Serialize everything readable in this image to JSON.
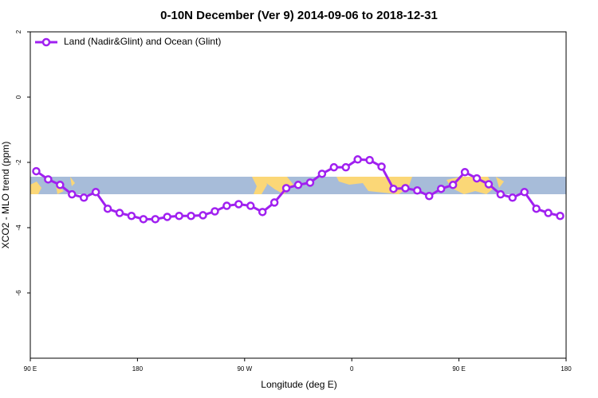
{
  "chart_data": {
    "type": "line",
    "title": "0-10N December (Ver 9)   2014-09-06 to 2018-12-31",
    "x_label": "Longitude (deg E)",
    "y_label": "XCO2 - MLO trend (ppm)",
    "xlim": [
      90,
      540
    ],
    "xticks": [
      {
        "value": 90,
        "label": "90 E"
      },
      180,
      {
        "value": 270,
        "label": "90 W"
      },
      {
        "value": 360,
        "label": "0"
      },
      {
        "value": 450,
        "label": "90 E"
      },
      {
        "value": 540,
        "label": "180"
      }
    ],
    "ylim": [
      -8,
      2
    ],
    "yticks": [
      -6,
      -4,
      -2,
      0,
      2
    ],
    "legend": "top-left",
    "x": [
      95,
      105,
      115,
      125,
      135,
      145,
      155,
      165,
      175,
      185,
      195,
      205,
      215,
      225,
      235,
      245,
      255,
      265,
      275,
      285,
      295,
      305,
      315,
      325,
      335,
      345,
      355,
      365,
      375,
      385,
      395,
      405,
      415,
      425,
      435,
      445,
      455,
      465,
      475,
      485,
      495,
      505,
      515,
      525,
      535
    ],
    "series": [
      {
        "name": "Land (Nadir&Glint) and Ocean (Glint)",
        "color": "#a020f0",
        "values": [
          -2.27,
          -2.52,
          -2.69,
          -2.98,
          -3.08,
          -2.91,
          -3.42,
          -3.55,
          -3.64,
          -3.74,
          -3.74,
          -3.67,
          -3.64,
          -3.64,
          -3.62,
          -3.5,
          -3.33,
          -3.28,
          -3.33,
          -3.52,
          -3.23,
          -2.79,
          -2.69,
          -2.62,
          -2.35,
          -2.15,
          -2.15,
          -1.91,
          -1.93,
          -2.13,
          -2.81,
          -2.79,
          -2.86,
          -3.03,
          -2.81,
          -2.69,
          -2.3,
          -2.49,
          -2.67,
          -2.98,
          -3.08,
          -2.91,
          -3.42,
          -3.55,
          -3.64
        ]
      }
    ]
  }
}
